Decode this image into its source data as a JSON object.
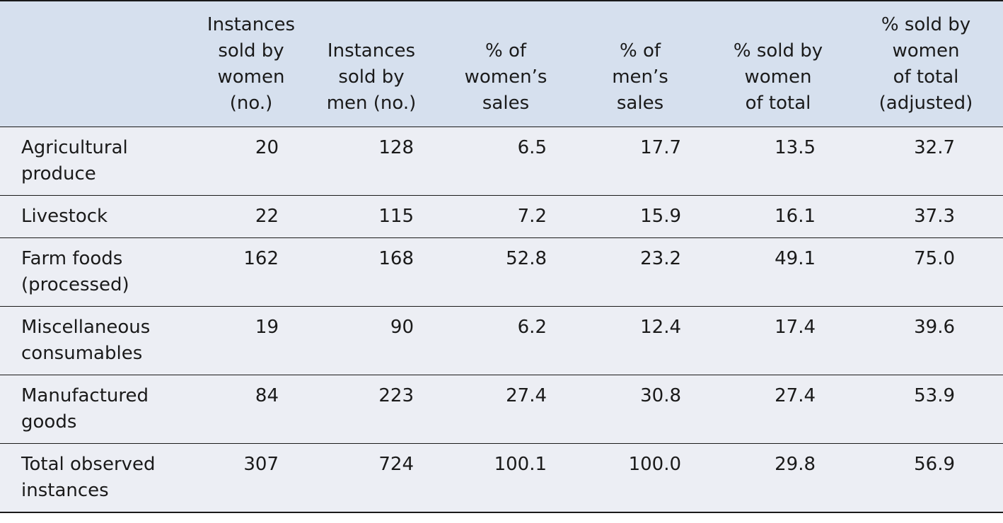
{
  "table": {
    "headers": [
      "",
      "Instances sold by women (no.)",
      "Instances sold by men (no.)",
      "% of women’s sales",
      "% of men’s sales",
      "% sold by women of total",
      "% sold by women of total (adjusted)"
    ],
    "header_lines": [
      [],
      [
        "Instances",
        "sold by",
        "women",
        "(no.)"
      ],
      [
        "Instances",
        "sold by",
        "men (no.)"
      ],
      [
        "% of",
        "women’s",
        "sales"
      ],
      [
        "% of",
        "men’s",
        "sales"
      ],
      [
        "% sold by",
        "women",
        "of total"
      ],
      [
        "% sold by",
        "women",
        "of total",
        "(adjusted)"
      ]
    ],
    "rows": [
      {
        "label_lines": [
          "Agricultural",
          "produce"
        ],
        "values": [
          "20",
          "128",
          "6.5",
          "17.7",
          "13.5",
          "32.7"
        ]
      },
      {
        "label_lines": [
          "Livestock"
        ],
        "values": [
          "22",
          "115",
          "7.2",
          "15.9",
          "16.1",
          "37.3"
        ]
      },
      {
        "label_lines": [
          "Farm foods",
          "(processed)"
        ],
        "values": [
          "162",
          "168",
          "52.8",
          "23.2",
          "49.1",
          "75.0"
        ]
      },
      {
        "label_lines": [
          "Miscellaneous",
          "consumables"
        ],
        "values": [
          "19",
          "90",
          "6.2",
          "12.4",
          "17.4",
          "39.6"
        ]
      },
      {
        "label_lines": [
          "Manufactured",
          "goods"
        ],
        "values": [
          "84",
          "223",
          "27.4",
          "30.8",
          "27.4",
          "53.9"
        ]
      },
      {
        "label_lines": [
          "Total observed",
          "instances"
        ],
        "values": [
          "307",
          "724",
          "100.1",
          "100.0",
          "29.8",
          "56.9"
        ]
      }
    ]
  }
}
